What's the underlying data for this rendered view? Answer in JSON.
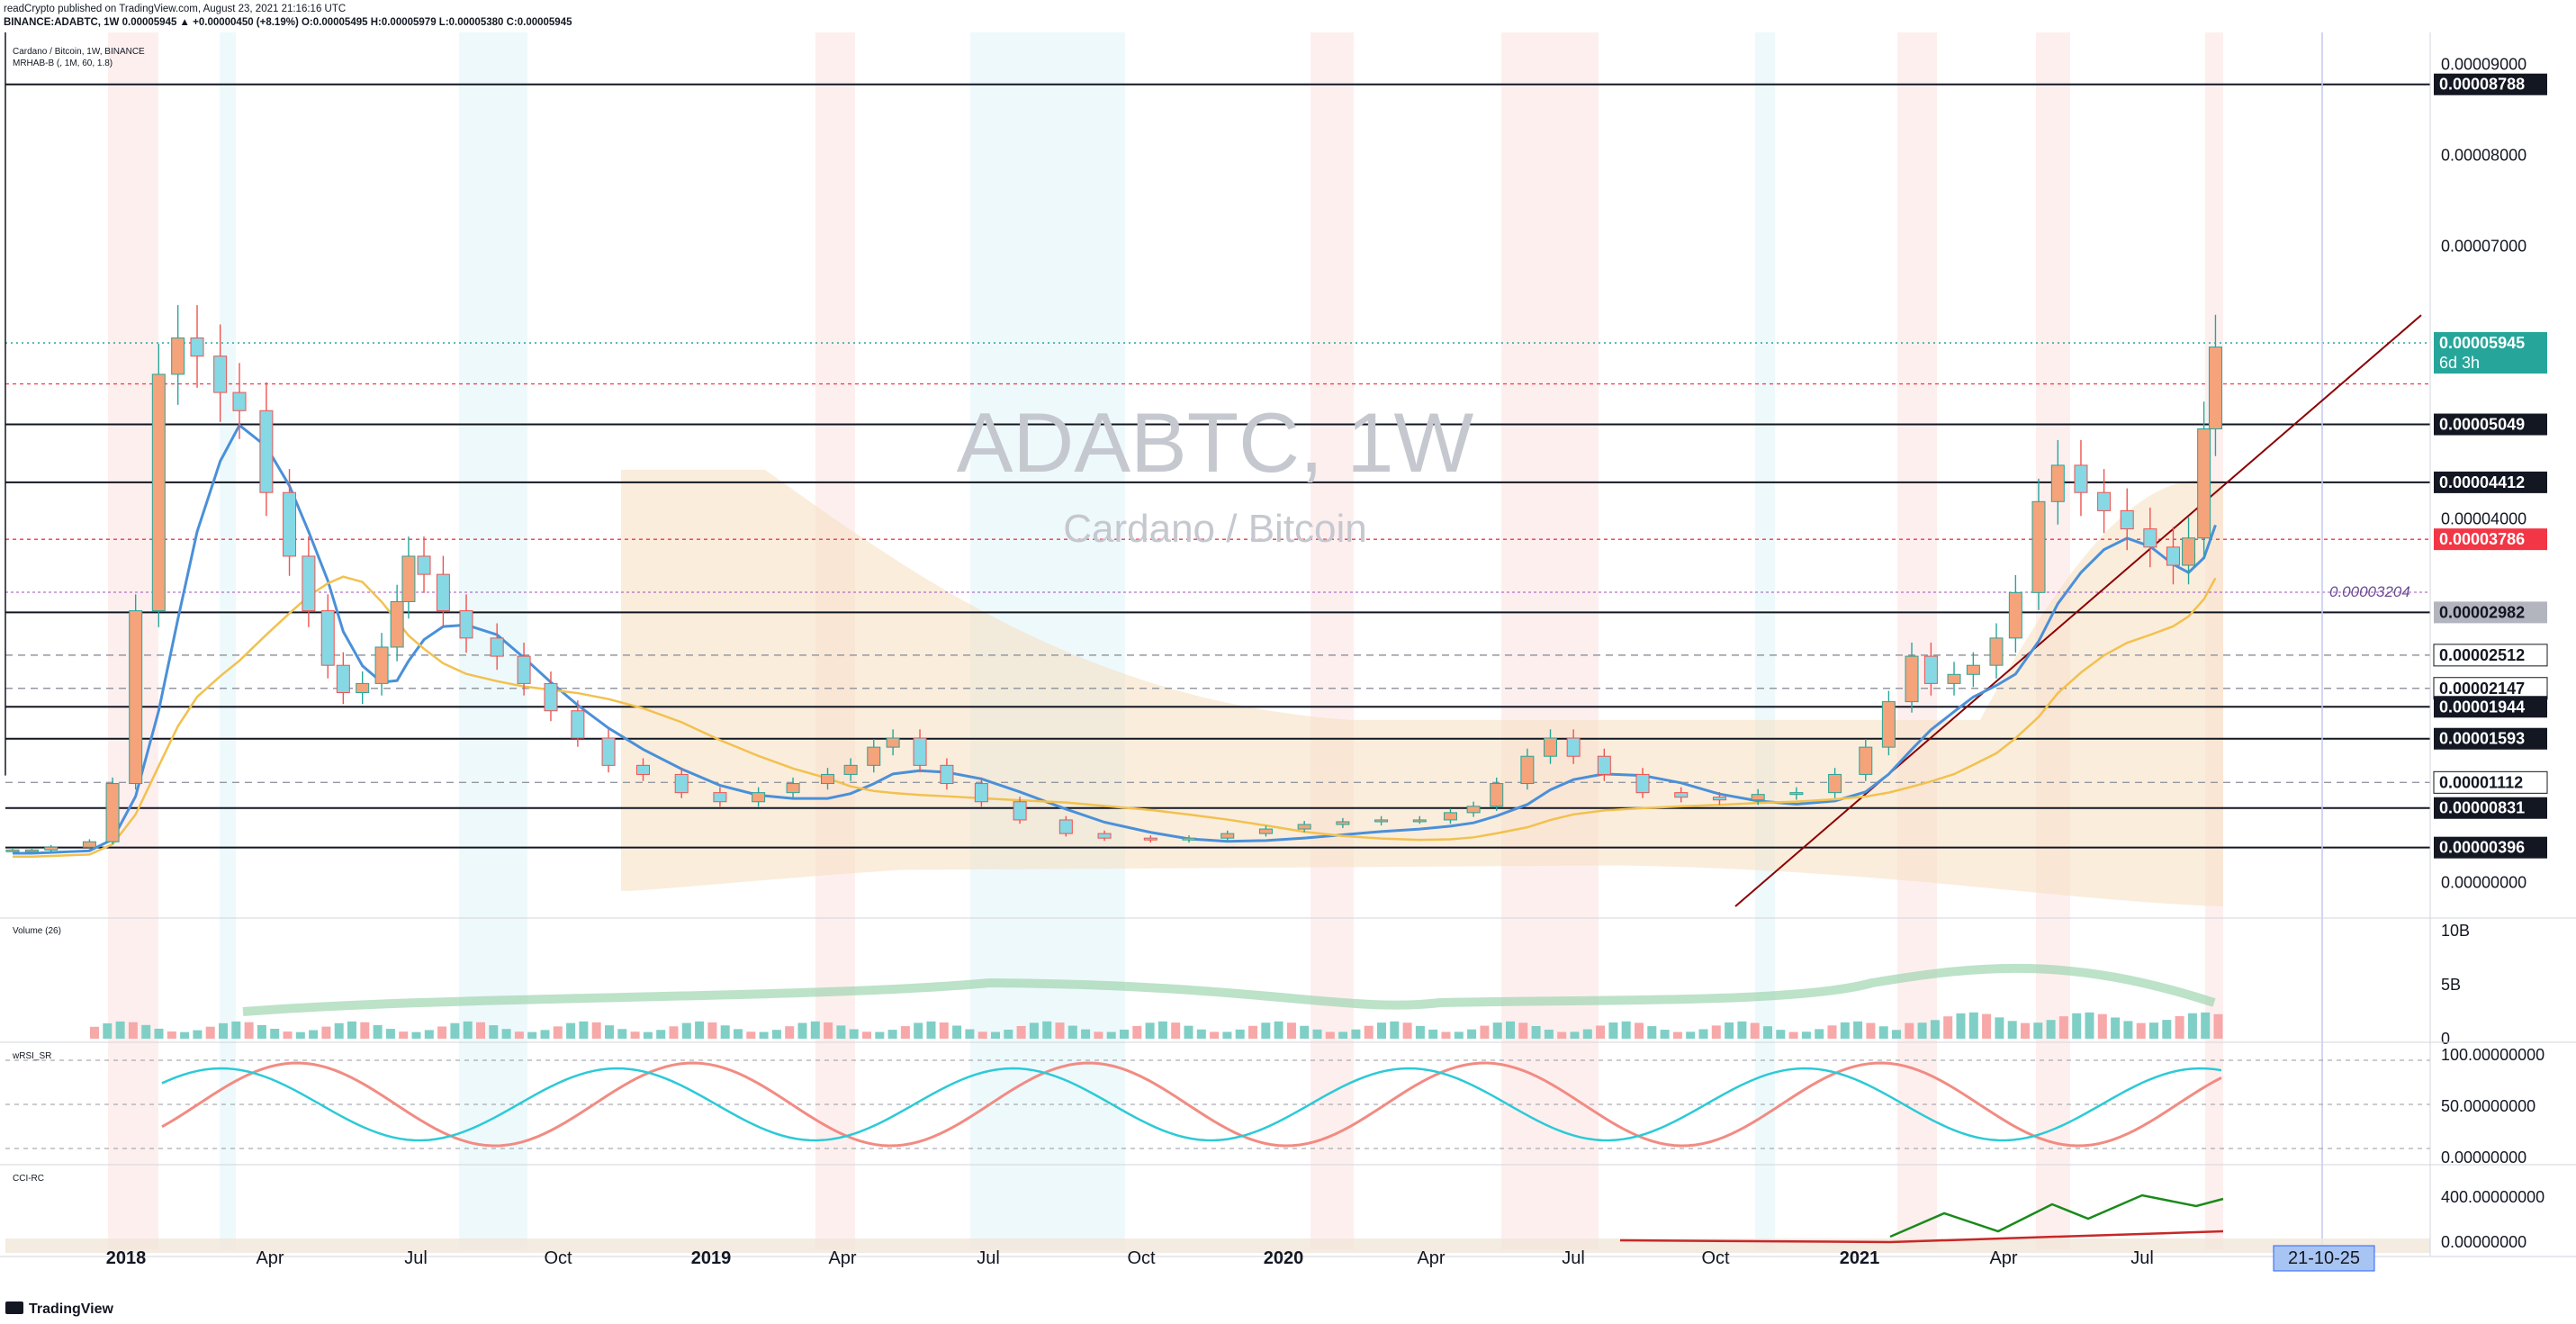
{
  "header": {
    "line1": "readCrypto published on TradingView.com, August 23, 2021 21:16:16 UTC",
    "line2": "BINANCE:ADABTC, 1W  0.00005945  ▲ +0.00000450 (+8.19%)  O:0.00005495  H:0.00005979  L:0.00005380  C:0.00005945"
  },
  "panes": {
    "main_title": "Cardano / Bitcoin, 1W, BINANCE",
    "main_indicator": "MRHAB-B (, 1M, 60, 1.8)",
    "volume_title": "Volume (26)",
    "wrsi_title": "wRSI_SR",
    "cci_title": "CCI-RC"
  },
  "watermark": {
    "symbol": "ADABTC, 1W",
    "name": "Cardano / Bitcoin"
  },
  "footer": {
    "brand": "TradingView"
  },
  "colors": {
    "up": "#26a69a",
    "down": "#ef5350",
    "ha_up": "#f4a37a",
    "ha_down": "#86d8e4",
    "trend": "#8b0000",
    "ma_blue": "#4a90d9",
    "ma_yellow": "#f2c14e",
    "cloud": "#f5dfc0",
    "red_level": "#f23645",
    "teal_price": "#26a69a",
    "cross_blue": "#2962ff"
  },
  "chart_data": [
    {
      "type": "candlestick",
      "title": "Cardano / Bitcoin, 1W, BINANCE",
      "x_axis_ticks": [
        "2018",
        "Apr",
        "Jul",
        "Oct",
        "2019",
        "Apr",
        "Jul",
        "Oct",
        "2020",
        "Apr",
        "Jul",
        "Oct",
        "2021",
        "Apr",
        "Jul"
      ],
      "x_cursor_label": "21-10-25",
      "y_axis_ticks": [
        "0.00009000",
        "0.00008000",
        "0.00007000",
        "0.00004000",
        "0.00000000"
      ],
      "ylim": [
        -3e-06,
        9.3e-05
      ],
      "price_levels": [
        {
          "label": "0.00008788",
          "value": 8.788e-05,
          "style": "solid"
        },
        {
          "label": "0.00005945",
          "value": 5.945e-05,
          "style": "last-price",
          "sub": "6d 3h"
        },
        {
          "label": "0.00005049",
          "value": 5.049e-05,
          "style": "solid"
        },
        {
          "label": "0.00004412",
          "value": 4.412e-05,
          "style": "solid"
        },
        {
          "label": "0.00003786",
          "value": 3.786e-05,
          "style": "red"
        },
        {
          "label": "0.00002982",
          "value": 2.982e-05,
          "style": "solid"
        },
        {
          "label": "0.00002512",
          "value": 2.512e-05,
          "style": "dashed"
        },
        {
          "label": "0.00002147",
          "value": 2.147e-05,
          "style": "dashed"
        },
        {
          "label": "0.00001944",
          "value": 1.944e-05,
          "style": "solid"
        },
        {
          "label": "0.00001593",
          "value": 1.593e-05,
          "style": "solid"
        },
        {
          "label": "0.00001112",
          "value": 1.112e-05,
          "style": "dashed"
        },
        {
          "label": "0.00000831",
          "value": 8.31e-06,
          "style": "solid"
        },
        {
          "label": "0.00000396",
          "value": 3.96e-06,
          "style": "solid"
        }
      ],
      "annotations": [
        {
          "text": "0.00003204",
          "value": 3.204e-05
        },
        {
          "text": "0.00005495",
          "value": 5.495e-05
        }
      ],
      "approx_close_path": [
        [
          0,
          3.7e-06
        ],
        [
          0.5,
          3.7e-06
        ],
        [
          1.0,
          4e-06
        ],
        [
          2.0,
          4.6e-06
        ],
        [
          2.6,
          1.1e-05
        ],
        [
          3.2,
          3e-05
        ],
        [
          3.8,
          5.6e-05
        ],
        [
          4.3,
          6e-05
        ],
        [
          4.8,
          5.8e-05
        ],
        [
          5.4,
          5.4e-05
        ],
        [
          5.9,
          5.2e-05
        ],
        [
          6.6,
          4.3e-05
        ],
        [
          7.2,
          3.6e-05
        ],
        [
          7.7,
          3e-05
        ],
        [
          8.2,
          2.4e-05
        ],
        [
          8.6,
          2.1e-05
        ],
        [
          9.1,
          2.2e-05
        ],
        [
          9.6,
          2.6e-05
        ],
        [
          10.0,
          3.1e-05
        ],
        [
          10.3,
          3.6e-05
        ],
        [
          10.7,
          3.4e-05
        ],
        [
          11.2,
          3e-05
        ],
        [
          11.8,
          2.7e-05
        ],
        [
          12.6,
          2.5e-05
        ],
        [
          13.3,
          2.2e-05
        ],
        [
          14.0,
          1.9e-05
        ],
        [
          14.7,
          1.6e-05
        ],
        [
          15.5,
          1.3e-05
        ],
        [
          16.4,
          1.2e-05
        ],
        [
          17.4,
          1e-05
        ],
        [
          18.4,
          9e-06
        ],
        [
          19.4,
          1e-05
        ],
        [
          20.3,
          1.1e-05
        ],
        [
          21.2,
          1.2e-05
        ],
        [
          21.8,
          1.3e-05
        ],
        [
          22.4,
          1.5e-05
        ],
        [
          22.9,
          1.6e-05
        ],
        [
          23.6,
          1.3e-05
        ],
        [
          24.3,
          1.1e-05
        ],
        [
          25.2,
          9e-06
        ],
        [
          26.2,
          7e-06
        ],
        [
          27.4,
          5.5e-06
        ],
        [
          28.4,
          5e-06
        ],
        [
          29.6,
          4.8e-06
        ],
        [
          30.6,
          5e-06
        ],
        [
          31.6,
          5.5e-06
        ],
        [
          32.6,
          6e-06
        ],
        [
          33.6,
          6.5e-06
        ],
        [
          34.6,
          6.8e-06
        ],
        [
          35.6,
          7e-06
        ],
        [
          36.6,
          7e-06
        ],
        [
          37.4,
          7.8e-06
        ],
        [
          38.0,
          8.5e-06
        ],
        [
          38.6,
          1.1e-05
        ],
        [
          39.4,
          1.4e-05
        ],
        [
          40.0,
          1.6e-05
        ],
        [
          40.6,
          1.4e-05
        ],
        [
          41.4,
          1.2e-05
        ],
        [
          42.4,
          1e-05
        ],
        [
          43.4,
          9.5e-06
        ],
        [
          44.4,
          9.2e-06
        ],
        [
          45.4,
          9.8e-06
        ],
        [
          46.4,
          1e-05
        ],
        [
          47.4,
          1.2e-05
        ],
        [
          48.2,
          1.5e-05
        ],
        [
          48.8,
          2e-05
        ],
        [
          49.4,
          2.5e-05
        ],
        [
          49.9,
          2.2e-05
        ],
        [
          50.5,
          2.3e-05
        ],
        [
          51.0,
          2.4e-05
        ],
        [
          51.6,
          2.7e-05
        ],
        [
          52.1,
          3.2e-05
        ],
        [
          52.7,
          4.2e-05
        ],
        [
          53.2,
          4.6e-05
        ],
        [
          53.8,
          4.3e-05
        ],
        [
          54.4,
          4.1e-05
        ],
        [
          55.0,
          3.9e-05
        ],
        [
          55.6,
          3.7e-05
        ],
        [
          56.2,
          3.5e-05
        ],
        [
          56.6,
          3.8e-05
        ],
        [
          57.0,
          5e-05
        ],
        [
          57.3,
          5.9e-05
        ]
      ]
    },
    {
      "type": "bar",
      "title": "Volume (26)",
      "y_axis_ticks": [
        "10B",
        "5B",
        "0"
      ],
      "ylim": [
        0,
        10000000000
      ]
    },
    {
      "type": "line",
      "title": "wRSI_SR",
      "y_axis_ticks": [
        "100.00000000",
        "50.00000000",
        "0.00000000"
      ],
      "ylim": [
        0,
        100
      ]
    },
    {
      "type": "line",
      "title": "CCI-RC",
      "y_axis_ticks": [
        "400.00000000",
        "0.00000000"
      ]
    }
  ]
}
